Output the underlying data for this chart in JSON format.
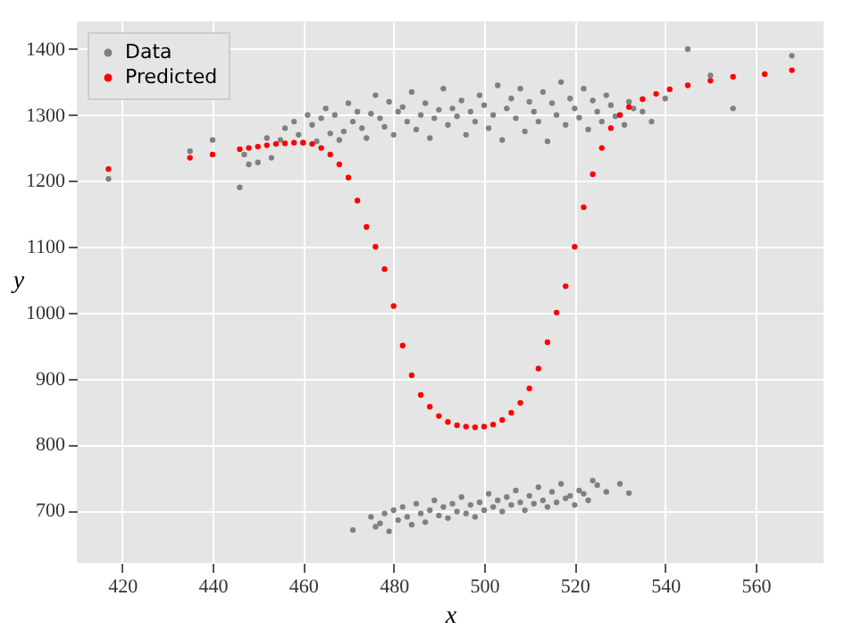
{
  "chart_data": {
    "type": "scatter",
    "xlabel": "x",
    "ylabel": "y",
    "xlim": [
      410,
      575
    ],
    "ylim": [
      620,
      1442
    ],
    "xticks": [
      420,
      440,
      460,
      480,
      500,
      520,
      540,
      560
    ],
    "yticks": [
      700,
      800,
      900,
      1000,
      1100,
      1200,
      1300,
      1400
    ],
    "grid": true,
    "legend": "top left",
    "marker": "circle",
    "series": [
      {
        "name": "Data",
        "color": "#808080",
        "x": [
          417,
          435,
          440,
          446,
          447,
          448,
          450,
          452,
          453,
          455,
          456,
          458,
          459,
          460,
          461,
          462,
          463,
          464,
          465,
          466,
          467,
          468,
          469,
          470,
          471,
          472,
          473,
          474,
          475,
          476,
          477,
          478,
          479,
          480,
          481,
          482,
          483,
          484,
          485,
          486,
          487,
          488,
          489,
          490,
          491,
          492,
          493,
          494,
          495,
          496,
          497,
          498,
          499,
          500,
          501,
          502,
          503,
          504,
          505,
          506,
          507,
          508,
          509,
          510,
          511,
          512,
          513,
          514,
          515,
          516,
          517,
          518,
          519,
          520,
          521,
          522,
          523,
          524,
          525,
          526,
          527,
          528,
          529,
          530,
          531,
          532,
          533,
          535,
          537,
          540,
          545,
          550,
          555,
          568,
          471,
          475,
          476,
          477,
          478,
          479,
          480,
          481,
          482,
          483,
          484,
          485,
          486,
          487,
          488,
          489,
          490,
          491,
          492,
          493,
          494,
          495,
          496,
          497,
          498,
          499,
          500,
          501,
          502,
          503,
          504,
          505,
          506,
          507,
          508,
          509,
          510,
          511,
          512,
          513,
          514,
          515,
          516,
          517,
          518,
          519,
          520,
          521,
          522,
          523,
          524,
          525,
          527,
          530,
          532
        ],
        "values": [
          1203,
          1245,
          1262,
          1190,
          1240,
          1225,
          1228,
          1265,
          1235,
          1262,
          1280,
          1290,
          1270,
          1258,
          1300,
          1285,
          1260,
          1295,
          1310,
          1272,
          1300,
          1262,
          1275,
          1318,
          1290,
          1305,
          1280,
          1265,
          1302,
          1330,
          1295,
          1282,
          1320,
          1270,
          1305,
          1312,
          1290,
          1335,
          1278,
          1300,
          1318,
          1265,
          1295,
          1308,
          1340,
          1285,
          1310,
          1298,
          1322,
          1270,
          1305,
          1290,
          1330,
          1315,
          1280,
          1300,
          1345,
          1262,
          1310,
          1325,
          1295,
          1340,
          1275,
          1320,
          1305,
          1290,
          1335,
          1260,
          1318,
          1300,
          1350,
          1285,
          1325,
          1310,
          1296,
          1340,
          1278,
          1322,
          1305,
          1290,
          1330,
          1315,
          1298,
          1300,
          1285,
          1320,
          1310,
          1305,
          1290,
          1325,
          1400,
          1360,
          1310,
          1390,
          670,
          690,
          675,
          680,
          695,
          668,
          700,
          685,
          705,
          690,
          678,
          710,
          695,
          682,
          700,
          715,
          692,
          705,
          688,
          710,
          698,
          720,
          695,
          708,
          690,
          712,
          700,
          725,
          705,
          715,
          698,
          720,
          708,
          730,
          712,
          700,
          722,
          710,
          735,
          715,
          705,
          728,
          712,
          740,
          718,
          722,
          708,
          730,
          725,
          715,
          745,
          738,
          728,
          740,
          726
        ]
      },
      {
        "name": "Predicted",
        "color": "#ff0000",
        "x": [
          417,
          435,
          440,
          446,
          448,
          450,
          452,
          454,
          456,
          458,
          460,
          462,
          464,
          466,
          468,
          470,
          472,
          474,
          476,
          478,
          480,
          482,
          484,
          486,
          488,
          490,
          492,
          494,
          496,
          498,
          500,
          502,
          504,
          506,
          508,
          510,
          512,
          514,
          516,
          518,
          520,
          522,
          524,
          526,
          528,
          530,
          532,
          535,
          538,
          541,
          545,
          550,
          555,
          562,
          568
        ],
        "values": [
          1218,
          1235,
          1240,
          1248,
          1250,
          1252,
          1254,
          1256,
          1257,
          1258,
          1258,
          1256,
          1250,
          1240,
          1225,
          1205,
          1170,
          1130,
          1100,
          1066,
          1010,
          950,
          905,
          875,
          857,
          843,
          834,
          829,
          827,
          826,
          827,
          830,
          837,
          848,
          863,
          885,
          915,
          955,
          1000,
          1040,
          1100,
          1160,
          1210,
          1250,
          1280,
          1300,
          1312,
          1324,
          1332,
          1339,
          1345,
          1352,
          1358,
          1362,
          1368
        ]
      }
    ]
  }
}
